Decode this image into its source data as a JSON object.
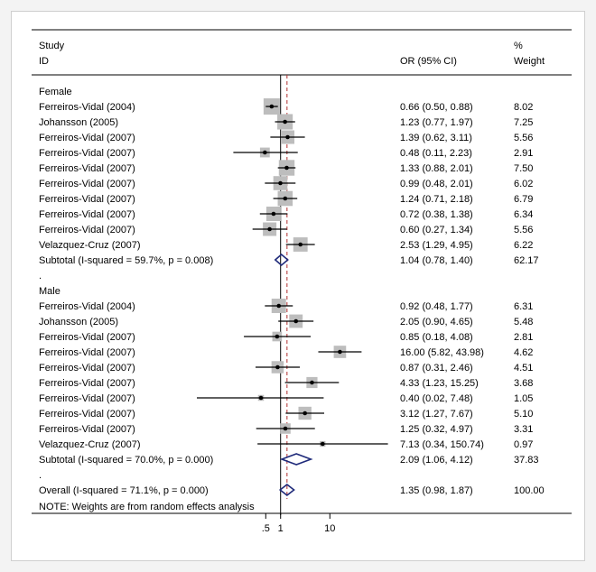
{
  "header": {
    "study_line1": "Study",
    "study_line2": "ID",
    "or_label": "OR (95% CI)",
    "weight_line1": "%",
    "weight_line2": "Weight"
  },
  "note": "NOTE: Weights are from random effects analysis",
  "colors": {
    "box": "#bdbdbd",
    "diamond": "#1f2a7a",
    "ref_line": "#b03030",
    "axis": "#000000",
    "frame": "#cfcfcf"
  },
  "chart_data": {
    "type": "forest",
    "x_scale": "log",
    "xlim": [
      0.02,
      160
    ],
    "xticks": [
      0.5,
      1,
      10
    ],
    "xtick_labels": [
      ".5",
      "1",
      "10"
    ],
    "null_line": 1,
    "overall_line": 1.35,
    "rows": [
      {
        "kind": "group",
        "label": "Female"
      },
      {
        "kind": "study",
        "label": "Ferreiros-Vidal (2004)",
        "or": 0.66,
        "lo": 0.5,
        "hi": 0.88,
        "ci_text": "0.66 (0.50, 0.88)",
        "weight": 8.02,
        "weight_text": "8.02"
      },
      {
        "kind": "study",
        "label": "Johansson (2005)",
        "or": 1.23,
        "lo": 0.77,
        "hi": 1.97,
        "ci_text": "1.23 (0.77, 1.97)",
        "weight": 7.25,
        "weight_text": "7.25"
      },
      {
        "kind": "study",
        "label": "Ferreiros-Vidal (2007)",
        "or": 1.39,
        "lo": 0.62,
        "hi": 3.11,
        "ci_text": "1.39 (0.62, 3.11)",
        "weight": 5.56,
        "weight_text": "5.56"
      },
      {
        "kind": "study",
        "label": "Ferreiros-Vidal (2007)",
        "or": 0.48,
        "lo": 0.11,
        "hi": 2.23,
        "ci_text": "0.48 (0.11, 2.23)",
        "weight": 2.91,
        "weight_text": "2.91"
      },
      {
        "kind": "study",
        "label": "Ferreiros-Vidal (2007)",
        "or": 1.33,
        "lo": 0.88,
        "hi": 2.01,
        "ci_text": "1.33 (0.88, 2.01)",
        "weight": 7.5,
        "weight_text": "7.50"
      },
      {
        "kind": "study",
        "label": "Ferreiros-Vidal (2007)",
        "or": 0.99,
        "lo": 0.48,
        "hi": 2.01,
        "ci_text": "0.99 (0.48, 2.01)",
        "weight": 6.02,
        "weight_text": "6.02"
      },
      {
        "kind": "study",
        "label": "Ferreiros-Vidal (2007)",
        "or": 1.24,
        "lo": 0.71,
        "hi": 2.18,
        "ci_text": "1.24 (0.71, 2.18)",
        "weight": 6.79,
        "weight_text": "6.79"
      },
      {
        "kind": "study",
        "label": "Ferreiros-Vidal (2007)",
        "or": 0.72,
        "lo": 0.38,
        "hi": 1.38,
        "ci_text": "0.72 (0.38, 1.38)",
        "weight": 6.34,
        "weight_text": "6.34"
      },
      {
        "kind": "study",
        "label": "Ferreiros-Vidal (2007)",
        "or": 0.6,
        "lo": 0.27,
        "hi": 1.34,
        "ci_text": "0.60 (0.27, 1.34)",
        "weight": 5.56,
        "weight_text": "5.56"
      },
      {
        "kind": "study",
        "label": "Velazquez-Cruz (2007)",
        "or": 2.53,
        "lo": 1.29,
        "hi": 4.95,
        "ci_text": "2.53 (1.29, 4.95)",
        "weight": 6.22,
        "weight_text": "6.22"
      },
      {
        "kind": "subtotal",
        "label": "Subtotal  (I-squared = 59.7%, p = 0.008)",
        "or": 1.04,
        "lo": 0.78,
        "hi": 1.4,
        "ci_text": "1.04 (0.78, 1.40)",
        "weight": 62.17,
        "weight_text": "62.17"
      },
      {
        "kind": "spacer",
        "label": "."
      },
      {
        "kind": "group",
        "label": "Male"
      },
      {
        "kind": "study",
        "label": "Ferreiros-Vidal (2004)",
        "or": 0.92,
        "lo": 0.48,
        "hi": 1.77,
        "ci_text": "0.92 (0.48, 1.77)",
        "weight": 6.31,
        "weight_text": "6.31"
      },
      {
        "kind": "study",
        "label": "Johansson (2005)",
        "or": 2.05,
        "lo": 0.9,
        "hi": 4.65,
        "ci_text": "2.05 (0.90, 4.65)",
        "weight": 5.48,
        "weight_text": "5.48"
      },
      {
        "kind": "study",
        "label": "Ferreiros-Vidal (2007)",
        "or": 0.85,
        "lo": 0.18,
        "hi": 4.08,
        "ci_text": "0.85 (0.18, 4.08)",
        "weight": 2.81,
        "weight_text": "2.81"
      },
      {
        "kind": "study",
        "label": "Ferreiros-Vidal (2007)",
        "or": 16.0,
        "lo": 5.82,
        "hi": 43.98,
        "ci_text": "16.00 (5.82, 43.98)",
        "weight": 4.62,
        "weight_text": "4.62"
      },
      {
        "kind": "study",
        "label": "Ferreiros-Vidal (2007)",
        "or": 0.87,
        "lo": 0.31,
        "hi": 2.46,
        "ci_text": "0.87 (0.31, 2.46)",
        "weight": 4.51,
        "weight_text": "4.51"
      },
      {
        "kind": "study",
        "label": "Ferreiros-Vidal (2007)",
        "or": 4.33,
        "lo": 1.23,
        "hi": 15.25,
        "ci_text": "4.33 (1.23, 15.25)",
        "weight": 3.68,
        "weight_text": "3.68"
      },
      {
        "kind": "study",
        "label": "Ferreiros-Vidal (2007)",
        "or": 0.4,
        "lo": 0.02,
        "hi": 7.48,
        "ci_text": "0.40 (0.02, 7.48)",
        "weight": 1.05,
        "weight_text": "1.05"
      },
      {
        "kind": "study",
        "label": "Ferreiros-Vidal (2007)",
        "or": 3.12,
        "lo": 1.27,
        "hi": 7.67,
        "ci_text": "3.12 (1.27, 7.67)",
        "weight": 5.1,
        "weight_text": "5.10"
      },
      {
        "kind": "study",
        "label": "Ferreiros-Vidal (2007)",
        "or": 1.25,
        "lo": 0.32,
        "hi": 4.97,
        "ci_text": "1.25 (0.32, 4.97)",
        "weight": 3.31,
        "weight_text": "3.31"
      },
      {
        "kind": "study",
        "label": "Velazquez-Cruz (2007)",
        "or": 7.13,
        "lo": 0.34,
        "hi": 150.74,
        "ci_text": "7.13 (0.34, 150.74)",
        "weight": 0.97,
        "weight_text": "0.97"
      },
      {
        "kind": "subtotal",
        "label": "Subtotal  (I-squared = 70.0%, p = 0.000)",
        "or": 2.09,
        "lo": 1.06,
        "hi": 4.12,
        "ci_text": "2.09 (1.06, 4.12)",
        "weight": 37.83,
        "weight_text": "37.83"
      },
      {
        "kind": "spacer",
        "label": "."
      },
      {
        "kind": "overall",
        "label": "Overall  (I-squared = 71.1%, p = 0.000)",
        "or": 1.35,
        "lo": 0.98,
        "hi": 1.87,
        "ci_text": "1.35 (0.98, 1.87)",
        "weight": 100,
        "weight_text": "100.00"
      }
    ]
  }
}
